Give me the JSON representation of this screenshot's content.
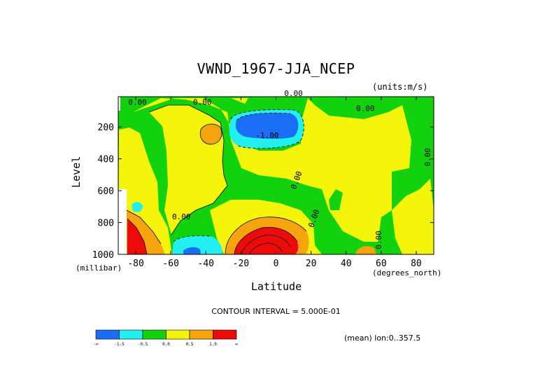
{
  "chart_data": {
    "type": "heatmap",
    "subtype": "filled-contour",
    "title": "VWND_1967-JJA_NCEP",
    "units_label": "(units:m/s)",
    "xlabel": "Latitude",
    "xunit": "(degrees_north)",
    "ylabel": "Level",
    "yunit": "(millibar)",
    "xlim": [
      -90,
      90
    ],
    "ylim": [
      1000,
      10
    ],
    "x_ticks": [
      "-80",
      "-60",
      "-40",
      "-20",
      "0",
      "20",
      "40",
      "60",
      "80"
    ],
    "y_ticks": [
      "200",
      "400",
      "600",
      "800",
      "1000"
    ],
    "contour_interval_text": "CONTOUR INTERVAL = 5.000E-01",
    "mean_text": "(mean) lon:0..357.5",
    "contour_labels": [
      "0.00",
      "-1.00"
    ],
    "legend": {
      "bins": [
        {
          "color": "#1a6ef5",
          "label": "-∞"
        },
        {
          "color": "#22f0f0",
          "label": "-1.5"
        },
        {
          "color": "#12d10d",
          "label": "-0.5"
        },
        {
          "color": "#f5f50c",
          "label": "0.0"
        },
        {
          "color": "#f5a40d",
          "label": "0.5"
        },
        {
          "color": "#ef0a0a",
          "label": "1.0"
        }
      ],
      "end_label": "∞"
    },
    "features": [
      {
        "type": "min",
        "lat": -1,
        "level": 175,
        "value_approx": -1.8
      },
      {
        "type": "max",
        "lat": -7,
        "level": 950,
        "value_approx": 3.5
      },
      {
        "type": "max",
        "lat": -85,
        "level": 900,
        "value_approx": 2.0
      },
      {
        "type": "min",
        "lat": -47,
        "level": 950,
        "value_approx": -1.2
      },
      {
        "type": "max",
        "lat": -38,
        "level": 230,
        "value_approx": 0.7
      },
      {
        "type": "max",
        "lat": 52,
        "level": 980,
        "value_approx": 0.6
      }
    ]
  }
}
